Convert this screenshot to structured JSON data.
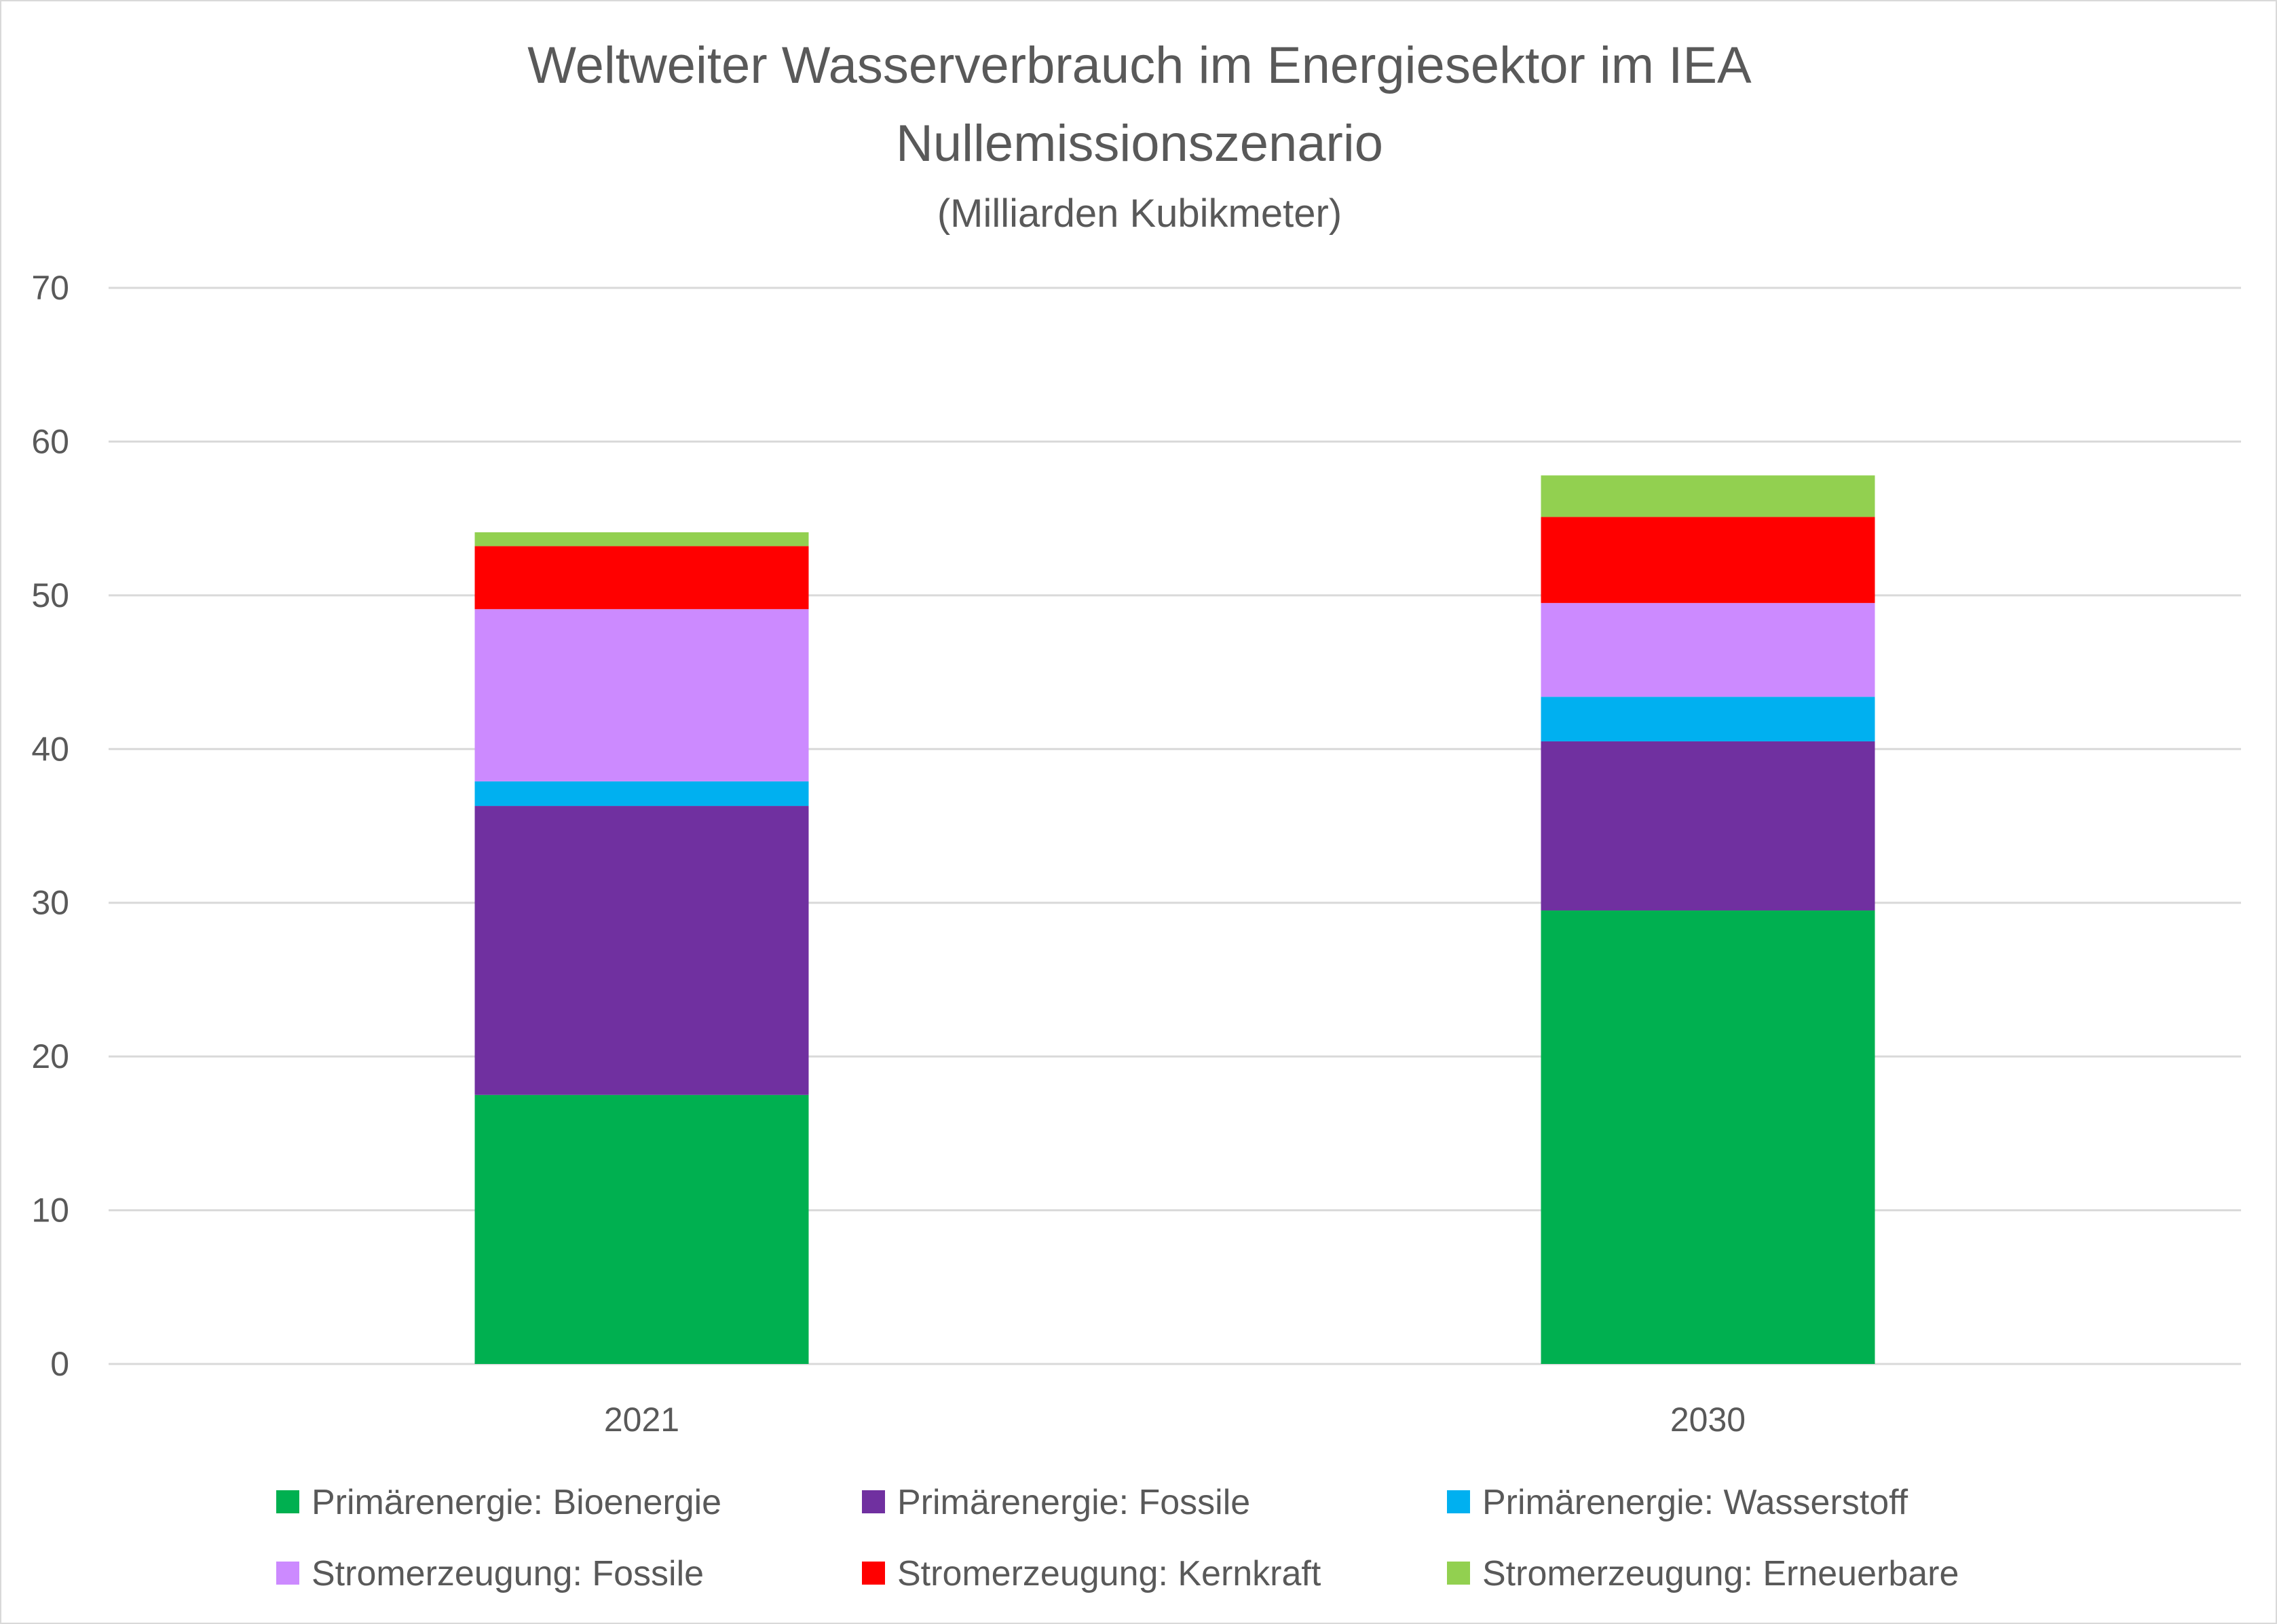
{
  "chart_data": {
    "type": "bar",
    "stacked": true,
    "title": "Weltweiter Wasserverbrauch im Energiesektor im IEA Nullemissionszenario",
    "title_lines": [
      "Weltweiter Wasserverbrauch im Energiesektor im IEA",
      "Nullemissionszenario"
    ],
    "subtitle": "(Milliarden Kubikmeter)",
    "xlabel": "",
    "ylabel": "",
    "ylim": [
      0,
      70
    ],
    "yticks": [
      0,
      10,
      20,
      30,
      40,
      50,
      60,
      70
    ],
    "grid": true,
    "legend_position": "bottom",
    "categories": [
      "2021",
      "2030"
    ],
    "series": [
      {
        "name": "Primärenergie: Bioenergie",
        "color": "#00b050",
        "values": [
          17.5,
          29.5
        ]
      },
      {
        "name": "Primärenergie: Fossile",
        "color": "#7030a0",
        "values": [
          18.8,
          11.0
        ]
      },
      {
        "name": "Primärenergie: Wasserstoff",
        "color": "#00b0f0",
        "values": [
          1.6,
          2.9
        ]
      },
      {
        "name": "Stromerzeugung: Fossile",
        "color": "#cc8aff",
        "values": [
          11.2,
          6.1
        ]
      },
      {
        "name": "Stromerzeugung: Kernkraft",
        "color": "#ff0000",
        "values": [
          4.1,
          5.6
        ]
      },
      {
        "name": "Stromerzeugung: Erneuerbare",
        "color": "#92d050",
        "values": [
          0.9,
          2.7
        ]
      }
    ]
  }
}
